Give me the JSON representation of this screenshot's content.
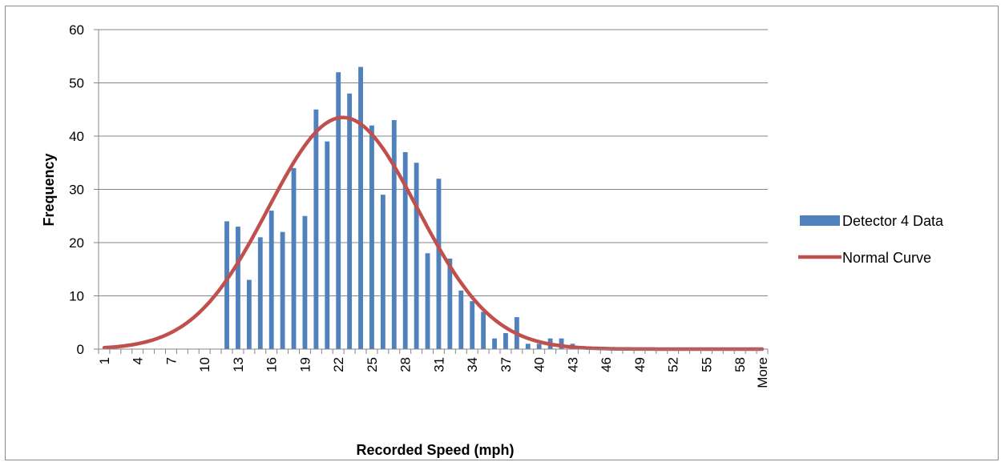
{
  "chart_data": {
    "type": "bar",
    "xlabel": "Recorded Speed (mph)",
    "ylabel": "Frequency",
    "ylim": [
      0,
      60
    ],
    "yticks": [
      0,
      10,
      20,
      30,
      40,
      50,
      60
    ],
    "categories": [
      "1",
      "2",
      "3",
      "4",
      "5",
      "6",
      "7",
      "8",
      "9",
      "10",
      "11",
      "12",
      "13",
      "14",
      "15",
      "16",
      "17",
      "18",
      "19",
      "20",
      "21",
      "22",
      "23",
      "24",
      "25",
      "26",
      "27",
      "28",
      "29",
      "30",
      "31",
      "32",
      "33",
      "34",
      "35",
      "36",
      "37",
      "38",
      "39",
      "40",
      "41",
      "42",
      "43",
      "44",
      "45",
      "46",
      "47",
      "48",
      "49",
      "50",
      "51",
      "52",
      "53",
      "54",
      "55",
      "56",
      "57",
      "58",
      "59",
      "More"
    ],
    "tick_labels_shown": [
      "1",
      "4",
      "7",
      "10",
      "13",
      "16",
      "19",
      "22",
      "25",
      "28",
      "31",
      "34",
      "37",
      "40",
      "43",
      "46",
      "49",
      "52",
      "55",
      "58",
      "More"
    ],
    "grid": true,
    "legend_position": "right",
    "series": [
      {
        "name": "Detector 4 Data",
        "type": "bar",
        "color": "#4f81bd",
        "values": [
          0,
          0,
          0,
          0,
          0,
          0,
          0,
          0,
          0,
          0,
          0,
          24,
          23,
          13,
          21,
          26,
          22,
          34,
          25,
          45,
          39,
          52,
          48,
          53,
          42,
          29,
          43,
          37,
          35,
          18,
          32,
          17,
          11,
          9,
          7,
          2,
          3,
          6,
          1,
          1,
          2,
          2,
          1,
          0,
          0,
          0,
          0,
          0,
          0,
          0,
          0,
          0,
          0,
          0,
          0,
          0,
          0,
          0,
          0,
          0
        ]
      },
      {
        "name": "Normal Curve",
        "type": "line",
        "color": "#c0504d",
        "mean": 22.4,
        "sd": 6.7,
        "peak": 43.5,
        "x_range": [
          1,
          60
        ]
      }
    ]
  }
}
